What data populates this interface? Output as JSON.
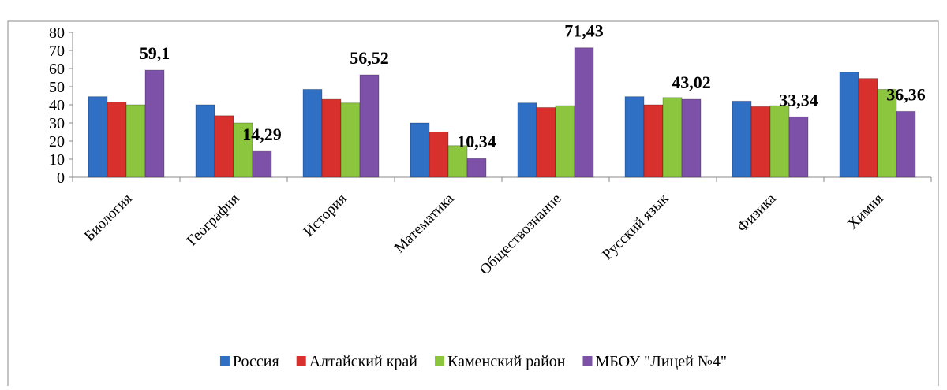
{
  "chart_data": {
    "type": "bar",
    "categories": [
      "Биология",
      "География",
      "История",
      "Математика",
      "Обществознание",
      "Русский язык",
      "Физика",
      "Химия"
    ],
    "series": [
      {
        "name": "Россия",
        "color": "#2f6fc4",
        "values": [
          44.5,
          40,
          48.5,
          30,
          41,
          44.5,
          42,
          58
        ]
      },
      {
        "name": "Алтайский край",
        "color": "#d8302c",
        "values": [
          41.5,
          34,
          43,
          25,
          38.5,
          40,
          39,
          54.5
        ]
      },
      {
        "name": "Каменский район",
        "color": "#8cc63f",
        "values": [
          40,
          30,
          41,
          17.5,
          39.5,
          44,
          39.5,
          48.5
        ]
      },
      {
        "name": "МБОУ \"Лицей №4\"",
        "color": "#7e51a9",
        "values": [
          59.1,
          14.29,
          56.52,
          10.34,
          71.43,
          43.02,
          33.34,
          36.36
        ],
        "value_labels": [
          "59,1",
          "14,29",
          "56,52",
          "10,34",
          "71,43",
          "43,02",
          "33,34",
          "36,36"
        ]
      }
    ],
    "ylim": [
      0,
      80
    ],
    "yticks": [
      0,
      10,
      20,
      30,
      40,
      50,
      60,
      70,
      80
    ],
    "grid": false,
    "legend": "bottom"
  }
}
